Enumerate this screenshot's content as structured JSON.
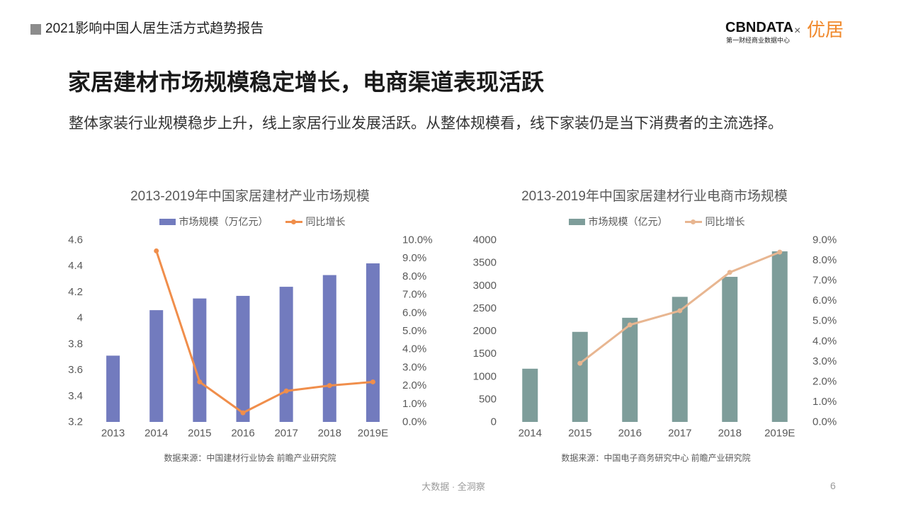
{
  "header": {
    "report_title": "2021影响中国人居生活方式趋势报告"
  },
  "logos": {
    "cbndata": "CBNDATA",
    "cbndata_subtitle": "第一财经商业数据中心",
    "separator": "×",
    "youju": "优居"
  },
  "slide": {
    "title": "家居建材市场规模稳定增长，电商渠道表现活跃",
    "subtitle": "整体家装行业规模稳步上升，线上家居行业发展活跃。从整体规模看，线下家装仍是当下消费者的主流选择。"
  },
  "footer": {
    "tagline": "大数据 · 全洞察",
    "page_number": "6"
  },
  "colors": {
    "header_marker": "#8C8C8C",
    "youju_brand": "#F0882B",
    "axis_text": "#595959"
  },
  "chart_data": [
    {
      "type": "bar",
      "title": "2013-2019年中国家居建材产业市场规模",
      "categories": [
        "2013",
        "2014",
        "2015",
        "2016",
        "2017",
        "2018",
        "2019E"
      ],
      "series": [
        {
          "name": "市场规模（万亿元）",
          "type": "bar",
          "axis": "left",
          "color": "#727BBE",
          "values": [
            3.71,
            4.06,
            4.15,
            4.17,
            4.24,
            4.33,
            4.42
          ]
        },
        {
          "name": "同比增长",
          "type": "line",
          "axis": "right",
          "color": "#F08E4B",
          "values": [
            null,
            9.4,
            2.2,
            0.5,
            1.7,
            2.0,
            2.2
          ]
        }
      ],
      "ylim": [
        3.2,
        4.6
      ],
      "y2lim": [
        0,
        10
      ],
      "y_ticks": [
        "4.6",
        "4.4",
        "4.2",
        "4",
        "3.8",
        "3.6",
        "3.4",
        "3.2"
      ],
      "y2_ticks": [
        "10.0%",
        "9.0%",
        "8.0%",
        "7.0%",
        "6.0%",
        "5.0%",
        "4.0%",
        "3.0%",
        "2.0%",
        "1.0%",
        "0.0%"
      ],
      "grid": false,
      "legend": "top",
      "source": "数据来源：中国建材行业协会 前瞻产业研究院"
    },
    {
      "type": "bar",
      "title": "2013-2019年中国家居建材行业电商市场规模",
      "categories": [
        "2014",
        "2015",
        "2016",
        "2017",
        "2018",
        "2019E"
      ],
      "series": [
        {
          "name": "市场规模（亿元）",
          "type": "bar",
          "axis": "left",
          "color": "#7E9D9A",
          "values": [
            1170,
            1980,
            2290,
            2750,
            3190,
            3750
          ]
        },
        {
          "name": "同比增长",
          "type": "line",
          "axis": "right",
          "color": "#E8B691",
          "values": [
            null,
            2.9,
            4.8,
            5.5,
            7.4,
            8.4
          ]
        }
      ],
      "ylim": [
        0,
        4000
      ],
      "y2lim": [
        0,
        9
      ],
      "y_ticks": [
        "4000",
        "3500",
        "3000",
        "2500",
        "2000",
        "1500",
        "1000",
        "500",
        "0"
      ],
      "y2_ticks": [
        "9.0%",
        "8.0%",
        "7.0%",
        "6.0%",
        "5.0%",
        "4.0%",
        "3.0%",
        "2.0%",
        "1.0%",
        "0.0%"
      ],
      "grid": false,
      "legend": "top",
      "source": "数据来源：中国电子商务研究中心 前瞻产业研究院"
    }
  ]
}
